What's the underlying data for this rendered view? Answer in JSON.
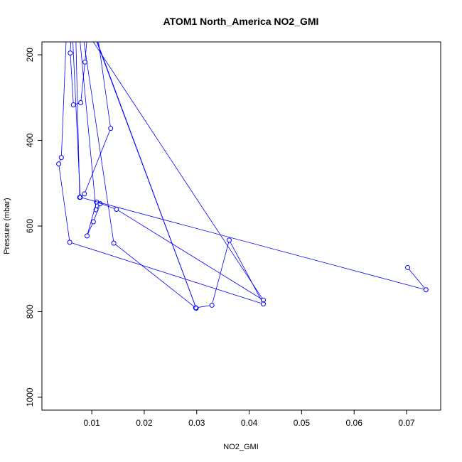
{
  "chart_data": {
    "type": "line",
    "title": "ATOM1 North_America NO2_GMI",
    "xlabel": "NO2_GMI",
    "ylabel": "Pressure (mbar)",
    "xlim": [
      0.0005,
      0.0765
    ],
    "ylim": [
      1030,
      170
    ],
    "y_reversed": true,
    "x_ticks": [
      0.01,
      0.02,
      0.03,
      0.04,
      0.05,
      0.06,
      0.07
    ],
    "x_tick_labels": [
      "0.01",
      "0.02",
      "0.03",
      "0.04",
      "0.05",
      "0.06",
      "0.07"
    ],
    "y_ticks": [
      200,
      400,
      600,
      800,
      1000
    ],
    "y_tick_labels": [
      "200",
      "400",
      "600",
      "800",
      "1000"
    ],
    "grid": false,
    "series": [
      {
        "color": "#0000ff",
        "marker": "open-circle",
        "x": [
          0.0068,
          0.0059,
          0.0065,
          0.0079,
          0.0087,
          0.0099,
          0.0136,
          0.0086,
          0.0077,
          0.0067,
          0.0108,
          0.0116,
          0.0103,
          0.0091,
          0.0109,
          0.0147,
          0.0427,
          0.0068,
          0.0073,
          0.0299,
          0.0068,
          0.0142,
          0.0298,
          0.0329,
          0.0362,
          0.0427,
          0.0058,
          0.0037,
          0.0042,
          0.0057,
          0.0078,
          0.0737,
          0.0702
        ],
        "y": [
          -10,
          196,
          317,
          312,
          217,
          50,
          372,
          525,
          533,
          30,
          562,
          548,
          590,
          623,
          544,
          561,
          773,
          105,
          50,
          792,
          30,
          640,
          791,
          785,
          633,
          782,
          638,
          455,
          440,
          -10,
          533,
          749,
          697
        ]
      }
    ]
  }
}
